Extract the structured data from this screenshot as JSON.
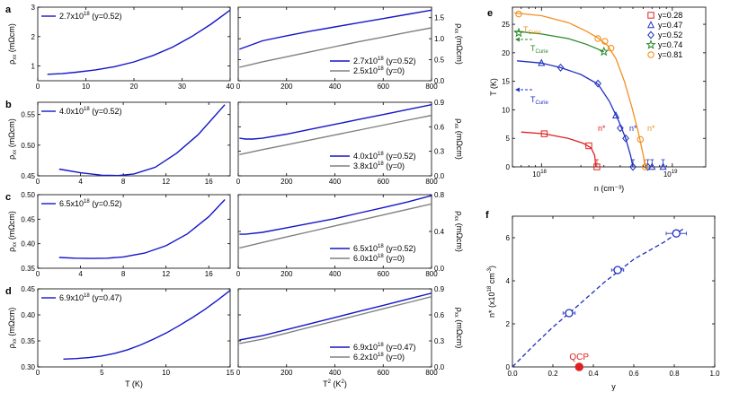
{
  "colors": {
    "blue": "#1515c8",
    "gray": "#808080",
    "red": "#e02020",
    "orange": "#f39020",
    "green": "#2a8a2a",
    "navy": "#2030c0",
    "axis": "#000000"
  },
  "chart_data": [
    {
      "panel": "a",
      "type": "line",
      "left": {
        "xlabel": "",
        "ylabel": "ρxx (mΩcm)",
        "xlim": [
          0,
          40
        ],
        "ylim": [
          0.5,
          3
        ],
        "xticks": [
          0,
          10,
          20,
          30,
          40
        ],
        "yticks": [
          1,
          2,
          3
        ],
        "legend": "2.7x10^18 (y=0.52)",
        "series": [
          {
            "name": "2.7x10^18 (y=0.52)",
            "color": "blue",
            "x": [
              2,
              5,
              8,
              12,
              16,
              20,
              24,
              28,
              32,
              36,
              40
            ],
            "y": [
              0.72,
              0.74,
              0.79,
              0.87,
              0.98,
              1.14,
              1.36,
              1.64,
              2.0,
              2.42,
              2.9
            ]
          }
        ]
      },
      "right": {
        "xlabel": "",
        "ylabel": "ρxx (mΩcm)",
        "xlim": [
          0,
          800
        ],
        "ylim": [
          0,
          1.75
        ],
        "xticks": [
          0,
          200,
          400,
          600,
          800
        ],
        "yticks": [
          0,
          0.5,
          1.0,
          1.5
        ],
        "series": [
          {
            "name": "2.7x10^18 (y=0.52)",
            "color": "blue",
            "x": [
              5,
              100,
              200,
              300,
              400,
              500,
              600,
              700,
              800
            ],
            "y": [
              0.75,
              0.95,
              1.07,
              1.18,
              1.28,
              1.38,
              1.48,
              1.58,
              1.68
            ]
          },
          {
            "name": "2.5x10^18 (y=0)",
            "color": "gray",
            "x": [
              5,
              50,
              100,
              200,
              300,
              400,
              500,
              600,
              700,
              800
            ],
            "y": [
              0.32,
              0.38,
              0.45,
              0.57,
              0.69,
              0.81,
              0.93,
              1.04,
              1.15,
              1.26
            ]
          }
        ]
      }
    },
    {
      "panel": "b",
      "type": "line",
      "left": {
        "xlabel": "",
        "ylabel": "ρxx (mΩcm)",
        "xlim": [
          0,
          18
        ],
        "ylim": [
          0.45,
          0.57
        ],
        "xticks": [
          0,
          4,
          8,
          12,
          16
        ],
        "yticks": [
          0.45,
          0.5,
          0.55
        ],
        "legend": "4.0x10^18 (y=0.52)",
        "series": [
          {
            "name": "4.0x10^18 (y=0.52)",
            "color": "blue",
            "x": [
              2,
              4,
              6,
              7.5,
              9,
              11,
              13,
              15,
              17.5
            ],
            "y": [
              0.461,
              0.455,
              0.451,
              0.4505,
              0.453,
              0.464,
              0.487,
              0.517,
              0.566
            ]
          }
        ]
      },
      "right": {
        "xlabel": "",
        "ylabel": "ρxx (mΩcm)",
        "xlim": [
          0,
          800
        ],
        "ylim": [
          0,
          0.9
        ],
        "xticks": [
          0,
          200,
          400,
          600,
          800
        ],
        "yticks": [
          0.0,
          0.3,
          0.6,
          0.9
        ],
        "series": [
          {
            "name": "4.0x10^18 (y=0.52)",
            "color": "blue",
            "x": [
              5,
              30,
              60,
              100,
              200,
              300,
              400,
              500,
              600,
              700,
              800
            ],
            "y": [
              0.46,
              0.45,
              0.45,
              0.46,
              0.51,
              0.57,
              0.63,
              0.69,
              0.75,
              0.81,
              0.87
            ]
          },
          {
            "name": "3.8x10^18 (y=0)",
            "color": "gray",
            "x": [
              5,
              100,
              200,
              300,
              400,
              500,
              600,
              700,
              800
            ],
            "y": [
              0.26,
              0.32,
              0.38,
              0.44,
              0.5,
              0.56,
              0.62,
              0.68,
              0.74
            ]
          }
        ]
      }
    },
    {
      "panel": "c",
      "type": "line",
      "left": {
        "xlabel": "",
        "ylabel": "ρxx (mΩcm)",
        "xlim": [
          0,
          18
        ],
        "ylim": [
          0.35,
          0.5
        ],
        "xticks": [
          0,
          4,
          8,
          12,
          16
        ],
        "yticks": [
          0.35,
          0.4,
          0.45,
          0.5
        ],
        "legend": "6.5x10^18 (y=0.52)",
        "series": [
          {
            "name": "6.5x10^18 (y=0.52)",
            "color": "blue",
            "x": [
              2,
              3.5,
              5,
              6.5,
              8,
              10,
              12,
              14,
              16,
              17.5
            ],
            "y": [
              0.372,
              0.3705,
              0.37,
              0.3705,
              0.373,
              0.381,
              0.396,
              0.42,
              0.455,
              0.49
            ]
          }
        ]
      },
      "right": {
        "xlabel": "",
        "ylabel": "ρxx (mΩcm)",
        "xlim": [
          0,
          800
        ],
        "ylim": [
          0,
          0.8
        ],
        "xticks": [
          0,
          200,
          400,
          600,
          800
        ],
        "yticks": [
          0.0,
          0.4,
          0.8
        ],
        "series": [
          {
            "name": "6.5x10^18 (y=0.52)",
            "color": "blue",
            "x": [
              5,
              30,
              100,
              200,
              300,
              400,
              500,
              600,
              700,
              800
            ],
            "y": [
              0.37,
              0.37,
              0.39,
              0.44,
              0.49,
              0.54,
              0.6,
              0.66,
              0.72,
              0.79
            ]
          },
          {
            "name": "6.0x10^18 (y=0)",
            "color": "gray",
            "x": [
              5,
              100,
              200,
              300,
              400,
              500,
              600,
              700,
              800
            ],
            "y": [
              0.22,
              0.28,
              0.34,
              0.4,
              0.46,
              0.52,
              0.58,
              0.64,
              0.7
            ]
          }
        ]
      }
    },
    {
      "panel": "d",
      "type": "line",
      "left": {
        "xlabel": "T (K)",
        "ylabel": "ρxx (mΩcm)",
        "xlim": [
          0,
          15
        ],
        "ylim": [
          0.3,
          0.45
        ],
        "xticks": [
          0,
          5,
          10,
          15
        ],
        "yticks": [
          0.3,
          0.35,
          0.4,
          0.45
        ],
        "legend": "6.9x10^18 (y=0.47)",
        "series": [
          {
            "name": "6.9x10^18 (y=0.47)",
            "color": "blue",
            "x": [
              2,
              3,
              4,
              5,
              6,
              7,
              8,
              9,
              10,
              11,
              12,
              13,
              14,
              15
            ],
            "y": [
              0.315,
              0.316,
              0.318,
              0.321,
              0.326,
              0.333,
              0.342,
              0.353,
              0.365,
              0.379,
              0.394,
              0.41,
              0.428,
              0.447
            ]
          }
        ]
      },
      "right": {
        "xlabel": "T² (K²)",
        "ylabel": "ρxx (mΩcm)",
        "xlim": [
          0,
          800
        ],
        "ylim": [
          0,
          0.9
        ],
        "xticks": [
          0,
          200,
          400,
          600,
          800
        ],
        "yticks": [
          0.0,
          0.3,
          0.6,
          0.9
        ],
        "series": [
          {
            "name": "6.9x10^18 (y=0.47)",
            "color": "blue",
            "x": [
              5,
              100,
              200,
              300,
              400,
              500,
              600,
              700,
              800
            ],
            "y": [
              0.31,
              0.36,
              0.43,
              0.5,
              0.57,
              0.64,
              0.71,
              0.78,
              0.85
            ]
          },
          {
            "name": "6.2x10^18 (y=0)",
            "color": "gray",
            "x": [
              5,
              100,
              200,
              300,
              400,
              500,
              600,
              700,
              800
            ],
            "y": [
              0.27,
              0.32,
              0.39,
              0.46,
              0.53,
              0.6,
              0.67,
              0.74,
              0.81
            ]
          }
        ]
      }
    },
    {
      "panel": "e",
      "type": "scatter",
      "xlabel": "n (cm⁻³)",
      "ylabel": "T (K)",
      "xscale": "log",
      "xlim": [
        6e+17,
        1.8e+19
      ],
      "ylim": [
        0,
        28
      ],
      "yticks": [
        0,
        5,
        10,
        15,
        20,
        25
      ],
      "xticklabels": [
        "10^18",
        "10^19"
      ],
      "legend": [
        "y=0.28",
        "y=0.47",
        "y=0.52",
        "y=0.74",
        "y=0.81"
      ],
      "labels": {
        "tcurie": "T",
        "tcurie_sub": "Curie",
        "nstar": "n*"
      },
      "series": [
        {
          "name": "y=0.28",
          "color": "red",
          "marker": "square",
          "points": [
            [
              1.05e+18,
              5.8
            ],
            [
              2.3e+18,
              3.7
            ],
            [
              2.65e+18,
              0
            ]
          ],
          "curve": [
            [
              7e+17,
              6.1
            ],
            [
              1.05e+18,
              5.8
            ],
            [
              1.6e+18,
              5.0
            ],
            [
              2.1e+18,
              4.1
            ],
            [
              2.4e+18,
              3.3
            ],
            [
              2.55e+18,
              2.0
            ],
            [
              2.6e+18,
              0
            ]
          ]
        },
        {
          "name": "y=0.47",
          "color": "navy",
          "marker": "triangle",
          "points": [
            [
              1e+18,
              18.2
            ],
            [
              3.7e+18,
              9.0
            ],
            [
              7e+18,
              0
            ],
            [
              8.5e+18,
              0
            ]
          ],
          "curve": []
        },
        {
          "name": "y=0.52",
          "color": "navy",
          "marker": "diamond",
          "points": [
            [
              1.4e+18,
              17.4
            ],
            [
              2.7e+18,
              14.6
            ],
            [
              4e+18,
              6.8
            ],
            [
              4.4e+18,
              5.0
            ],
            [
              5e+18,
              0
            ],
            [
              6.5e+18,
              0
            ]
          ],
          "curve": [
            [
              6.5e+17,
              18.6
            ],
            [
              1e+18,
              18.2
            ],
            [
              1.4e+18,
              17.4
            ],
            [
              2e+18,
              16.2
            ],
            [
              2.7e+18,
              14.5
            ],
            [
              3.3e+18,
              11.5
            ],
            [
              3.9e+18,
              8.0
            ],
            [
              4.4e+18,
              5.0
            ],
            [
              4.8e+18,
              2.0
            ],
            [
              5e+18,
              0
            ]
          ]
        },
        {
          "name": "y=0.74",
          "color": "green",
          "marker": "star",
          "points": [
            [
              6.7e+17,
              23.5
            ],
            [
              3e+18,
              20.2
            ]
          ],
          "curve": [
            [
              6.2e+17,
              23.8
            ],
            [
              1e+18,
              23.3
            ],
            [
              1.6e+18,
              22.5
            ],
            [
              2.2e+18,
              21.5
            ],
            [
              2.8e+18,
              20.5
            ],
            [
              3e+18,
              20.2
            ]
          ]
        },
        {
          "name": "y=0.81",
          "color": "orange",
          "marker": "circle",
          "points": [
            [
              6.7e+17,
              26.8
            ],
            [
              2.7e+18,
              22.5
            ],
            [
              3.05e+18,
              22.0
            ],
            [
              3.4e+18,
              20.8
            ],
            [
              5.7e+18,
              4.8
            ],
            [
              6.2e+18,
              0
            ]
          ],
          "curve": [
            [
              6.2e+17,
              27.0
            ],
            [
              1e+18,
              26.5
            ],
            [
              1.6e+18,
              25.3
            ],
            [
              2.2e+18,
              23.8
            ],
            [
              2.7e+18,
              22.6
            ],
            [
              3.2e+18,
              21.3
            ],
            [
              3.7e+18,
              19.0
            ],
            [
              4.3e+18,
              15.0
            ],
            [
              4.9e+18,
              10.5
            ],
            [
              5.5e+18,
              6.0
            ],
            [
              6e+18,
              2.0
            ],
            [
              6.2e+18,
              0
            ]
          ]
        }
      ]
    },
    {
      "panel": "f",
      "type": "scatter",
      "xlabel": "y",
      "ylabel": "n* (x10^18 cm⁻³)",
      "xlim": [
        0,
        1.0
      ],
      "ylim": [
        0,
        7
      ],
      "xticks": [
        0.0,
        0.2,
        0.4,
        0.6,
        0.8,
        1.0
      ],
      "yticks": [
        0,
        2,
        4,
        6
      ],
      "annotation": "QCP",
      "points": [
        {
          "x": 0.28,
          "y": 2.5,
          "xerr": 0.03
        },
        {
          "x": 0.52,
          "y": 4.5,
          "xerr": 0.03
        },
        {
          "x": 0.81,
          "y": 6.2,
          "xerr": 0.05
        }
      ],
      "qcp": {
        "x": 0.33,
        "y": 0
      },
      "fit_curve": [
        [
          0,
          0
        ],
        [
          0.1,
          0.95
        ],
        [
          0.2,
          1.85
        ],
        [
          0.33,
          2.9
        ],
        [
          0.45,
          3.9
        ],
        [
          0.6,
          5.0
        ],
        [
          0.75,
          5.8
        ],
        [
          0.85,
          6.45
        ]
      ]
    }
  ]
}
